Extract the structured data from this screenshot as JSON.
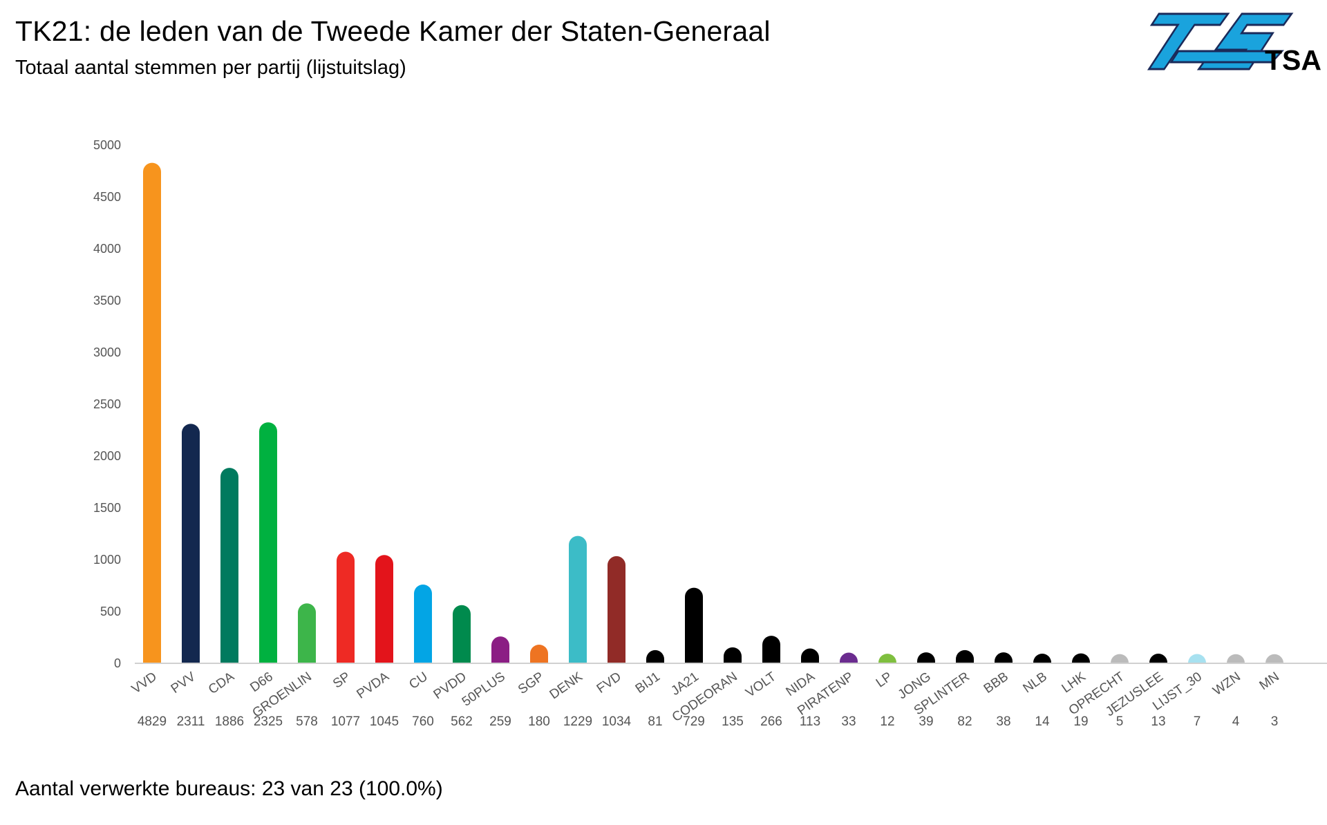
{
  "header": {
    "title": "TK21: de leden van de Tweede Kamer der Staten-Generaal",
    "subtitle": "Totaal aantal stemmen per partij (lijstuitslag)"
  },
  "logo": {
    "text": "TSA",
    "color": "#1aa3dd",
    "outline": "#1a2a5a"
  },
  "footer": {
    "note": "Aantal verwerkte bureaus: 23 van 23 (100.0%)"
  },
  "chart_data": {
    "type": "bar",
    "title": "",
    "xlabel": "",
    "ylabel": "",
    "ylim": [
      0,
      5000
    ],
    "yticks": [
      0,
      500,
      1000,
      1500,
      2000,
      2500,
      3000,
      3500,
      4000,
      4500,
      5000
    ],
    "grid": false,
    "legend": "none",
    "categories": [
      "VVD",
      "PVV",
      "CDA",
      "D66",
      "GROENLIN",
      "SP",
      "PVDA",
      "CU",
      "PVDD",
      "50PLUS",
      "SGP",
      "DENK",
      "FVD",
      "BIJ1",
      "JA21",
      "CODEORAN",
      "VOLT",
      "NIDA",
      "PIRATENP",
      "LP",
      "JONG",
      "SPLINTER",
      "BBB",
      "NLB",
      "LHK",
      "OPRECHT",
      "JEZUSLEE",
      "LIJST_30",
      "WZN",
      "MN"
    ],
    "values": [
      4829,
      2311,
      1886,
      2325,
      578,
      1077,
      1045,
      760,
      562,
      259,
      180,
      1229,
      1034,
      81,
      729,
      135,
      266,
      113,
      33,
      12,
      39,
      82,
      38,
      14,
      19,
      5,
      13,
      7,
      4,
      3
    ],
    "value_labels": [
      "4829",
      "2311",
      "1886",
      "2325",
      "578",
      "1077",
      "1045",
      "760",
      "562",
      "259",
      "180",
      "1229",
      "1034",
      "81",
      "729",
      "135",
      "266",
      "113",
      "33",
      "12",
      "39",
      "82",
      "38",
      "14",
      "19",
      "5",
      "13",
      "7",
      "4",
      "3"
    ],
    "colors": [
      "#f7941d",
      "#13284f",
      "#007a5e",
      "#00b140",
      "#3db54a",
      "#ee2a24",
      "#e3141b",
      "#03a5e5",
      "#008a4d",
      "#8b1e84",
      "#ee7422",
      "#3cbcc7",
      "#912b27",
      "#000000",
      "#000000",
      "#000000",
      "#000000",
      "#000000",
      "#6b2c8f",
      "#7fbf3f",
      "#000000",
      "#000000",
      "#000000",
      "#000000",
      "#000000",
      "#bbbbbb",
      "#000000",
      "#a7e1f0",
      "#bbbbbb",
      "#bbbbbb"
    ]
  }
}
